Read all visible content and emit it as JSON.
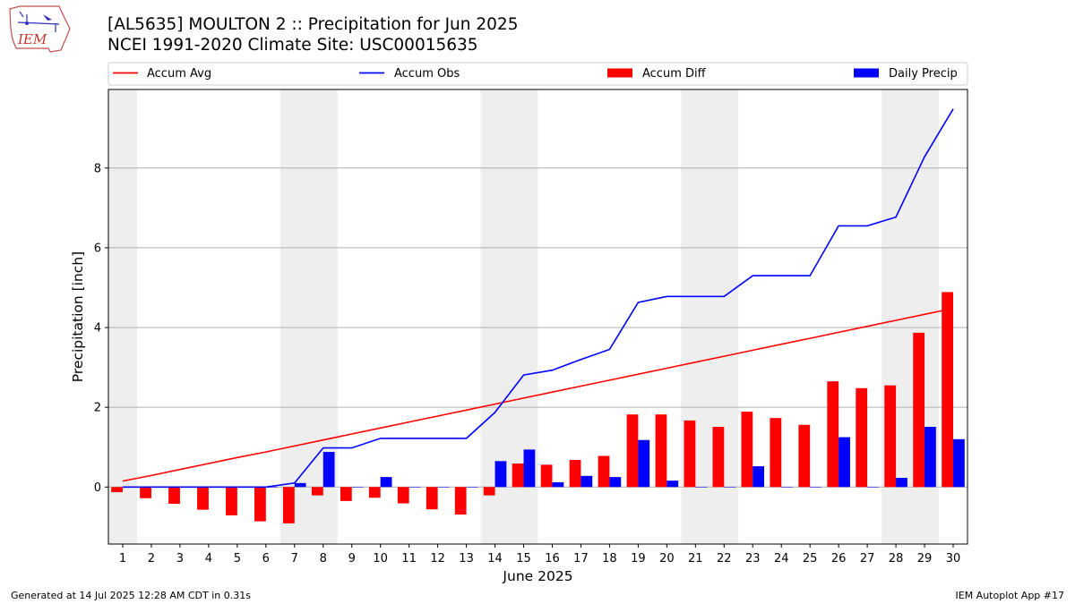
{
  "header": {
    "title_line1": "[AL5635] MOULTON 2 :: Precipitation for Jun 2025",
    "title_line2": "NCEI 1991-2020 Climate Site: USC00015635",
    "logo_text": "IEM"
  },
  "footer": {
    "left": "Generated at 14 Jul 2025 12:28 AM CDT in 0.31s",
    "right": "IEM Autoplot App #17"
  },
  "colors": {
    "accum_avg": "#ff0000",
    "accum_obs": "#0000ff",
    "accum_diff": "#ff0000",
    "daily_precip": "#0000ff",
    "weekend_shade": "#eeeeee",
    "grid": "#b0b0b0"
  },
  "chart_data": {
    "type": "bar",
    "xlabel": "June 2025",
    "ylabel": "Precipitation [inch]",
    "xlim": [
      0.5,
      30.5
    ],
    "ylim": [
      -1.43,
      9.97
    ],
    "y_ticks": [
      0,
      2,
      4,
      6,
      8
    ],
    "grid": "horizontal",
    "legend_position": "top",
    "legend": [
      "Accum Avg",
      "Accum Obs",
      "Accum Diff",
      "Daily Precip"
    ],
    "days": [
      1,
      2,
      3,
      4,
      5,
      6,
      7,
      8,
      9,
      10,
      11,
      12,
      13,
      14,
      15,
      16,
      17,
      18,
      19,
      20,
      21,
      22,
      23,
      24,
      25,
      26,
      27,
      28,
      29,
      30
    ],
    "weekend_spans": [
      [
        0.5,
        1.5
      ],
      [
        6.5,
        8.5
      ],
      [
        13.5,
        15.5
      ],
      [
        20.5,
        22.5
      ],
      [
        27.5,
        29.5
      ]
    ],
    "series": [
      {
        "name": "Accum Avg",
        "kind": "line",
        "values": [
          0.15,
          0.29,
          0.44,
          0.59,
          0.74,
          0.88,
          1.03,
          1.18,
          1.33,
          1.48,
          1.63,
          1.78,
          1.93,
          2.08,
          2.23,
          2.38,
          2.53,
          2.68,
          2.83,
          2.98,
          3.13,
          3.28,
          3.43,
          3.58,
          3.73,
          3.88,
          4.03,
          4.18,
          4.33,
          4.48
        ]
      },
      {
        "name": "Accum Obs",
        "kind": "line",
        "values": [
          0,
          0,
          0,
          0,
          0,
          0,
          0.1,
          0.98,
          0.98,
          1.22,
          1.22,
          1.22,
          1.22,
          1.87,
          2.81,
          2.93,
          3.2,
          3.45,
          4.63,
          4.78,
          4.78,
          4.78,
          5.3,
          5.3,
          5.3,
          6.55,
          6.55,
          6.77,
          8.28,
          9.48
        ]
      },
      {
        "name": "Accum Diff",
        "kind": "bar",
        "values": [
          -0.13,
          -0.28,
          -0.42,
          -0.57,
          -0.71,
          -0.86,
          -0.91,
          -0.21,
          -0.35,
          -0.27,
          -0.41,
          -0.56,
          -0.69,
          -0.21,
          0.59,
          0.56,
          0.68,
          0.78,
          1.82,
          1.82,
          1.67,
          1.51,
          1.89,
          1.73,
          1.56,
          2.65,
          2.48,
          2.55,
          3.87,
          4.89
        ]
      },
      {
        "name": "Daily Precip",
        "kind": "bar",
        "values": [
          0,
          0,
          0,
          0,
          0,
          0,
          0.1,
          0.88,
          0,
          0.25,
          0,
          0,
          0,
          0.65,
          0.94,
          0.12,
          0.28,
          0.25,
          1.18,
          0.16,
          0,
          0,
          0.52,
          0,
          0,
          1.25,
          0,
          0.23,
          1.51,
          1.2
        ]
      }
    ]
  }
}
